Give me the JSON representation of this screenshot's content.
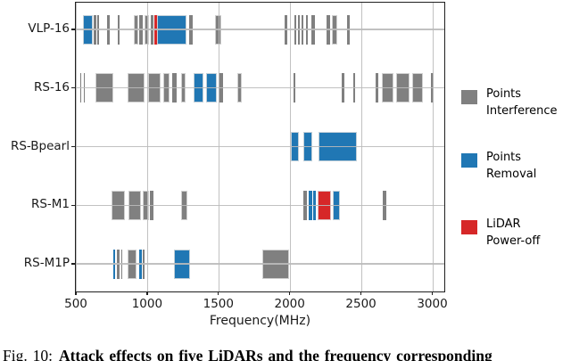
{
  "figure": {
    "caption_prefix": "Fig. 10:",
    "caption_title": "Attack effects on five LiDARs and the frequency corresponding"
  },
  "chart_data": {
    "type": "bar",
    "variant": "broken_barh_frequency_bands",
    "title": "",
    "xlabel": "Frequency(MHz)",
    "ylabel": "",
    "xlim": [
      500,
      3085
    ],
    "xticks": [
      500,
      1000,
      1500,
      2000,
      2500,
      3000
    ],
    "grid": true,
    "legend_position": "right",
    "legend_order": [
      "interference",
      "removal",
      "poweroff"
    ],
    "effects": {
      "interference": {
        "label": [
          "Points",
          "Interference"
        ],
        "color": "#808080"
      },
      "removal": {
        "label": [
          "Points",
          "Removal"
        ],
        "color": "#2077b4"
      },
      "poweroff": {
        "label": [
          "LiDAR",
          "Power-off"
        ],
        "color": "#d62728"
      }
    },
    "rows": [
      {
        "label": "VLP-16",
        "segments": [
          [
            550,
            620,
            "removal"
          ],
          [
            627,
            644,
            "interference"
          ],
          [
            650,
            661,
            "interference"
          ],
          [
            721,
            736,
            "interference"
          ],
          [
            796,
            804,
            "interference"
          ],
          [
            904,
            936,
            "interference"
          ],
          [
            946,
            971,
            "interference"
          ],
          [
            981,
            1014,
            "interference"
          ],
          [
            1023,
            1044,
            "interference"
          ],
          [
            1048,
            1072,
            "poweroff"
          ],
          [
            1072,
            1277,
            "removal"
          ],
          [
            1292,
            1322,
            "interference"
          ],
          [
            1478,
            1520,
            "interference"
          ],
          [
            1964,
            1983,
            "interference"
          ],
          [
            2031,
            2044,
            "interference"
          ],
          [
            2058,
            2073,
            "interference"
          ],
          [
            2086,
            2098,
            "interference"
          ],
          [
            2115,
            2127,
            "interference"
          ],
          [
            2152,
            2177,
            "interference"
          ],
          [
            2260,
            2281,
            "interference"
          ],
          [
            2298,
            2333,
            "interference"
          ],
          [
            2400,
            2421,
            "interference"
          ]
        ]
      },
      {
        "label": "RS-16",
        "segments": [
          [
            529,
            538,
            "interference"
          ],
          [
            554,
            563,
            "interference"
          ],
          [
            635,
            760,
            "interference"
          ],
          [
            864,
            979,
            "interference"
          ],
          [
            1010,
            1094,
            "interference"
          ],
          [
            1114,
            1156,
            "interference"
          ],
          [
            1177,
            1208,
            "interference"
          ],
          [
            1239,
            1271,
            "interference"
          ],
          [
            1323,
            1396,
            "removal"
          ],
          [
            1411,
            1490,
            "removal"
          ],
          [
            1500,
            1531,
            "interference"
          ],
          [
            1635,
            1667,
            "interference"
          ],
          [
            2027,
            2038,
            "interference"
          ],
          [
            2365,
            2381,
            "interference"
          ],
          [
            2444,
            2456,
            "interference"
          ],
          [
            2604,
            2621,
            "interference"
          ],
          [
            2646,
            2725,
            "interference"
          ],
          [
            2746,
            2839,
            "interference"
          ],
          [
            2861,
            2933,
            "interference"
          ],
          [
            2990,
            3010,
            "interference"
          ]
        ]
      },
      {
        "label": "RS-Bpearl",
        "segments": [
          [
            2010,
            2067,
            "removal"
          ],
          [
            2098,
            2156,
            "removal"
          ],
          [
            2205,
            2470,
            "removal"
          ]
        ]
      },
      {
        "label": "RS-M1",
        "segments": [
          [
            750,
            845,
            "interference"
          ],
          [
            870,
            955,
            "interference"
          ],
          [
            968,
            1015,
            "interference"
          ],
          [
            1022,
            1046,
            "interference"
          ],
          [
            1240,
            1281,
            "interference"
          ],
          [
            2098,
            2121,
            "interference"
          ],
          [
            2134,
            2156,
            "removal"
          ],
          [
            2166,
            2184,
            "removal"
          ],
          [
            2198,
            2292,
            "poweroff"
          ],
          [
            2305,
            2355,
            "removal"
          ],
          [
            2650,
            2678,
            "interference"
          ]
        ]
      },
      {
        "label": "RS-M1P",
        "segments": [
          [
            760,
            777,
            "removal"
          ],
          [
            787,
            806,
            "interference"
          ],
          [
            817,
            827,
            "interference"
          ],
          [
            864,
            927,
            "interference"
          ],
          [
            942,
            962,
            "removal"
          ],
          [
            968,
            985,
            "interference"
          ],
          [
            1188,
            1302,
            "removal"
          ],
          [
            1805,
            1995,
            "interference"
          ]
        ]
      }
    ]
  }
}
